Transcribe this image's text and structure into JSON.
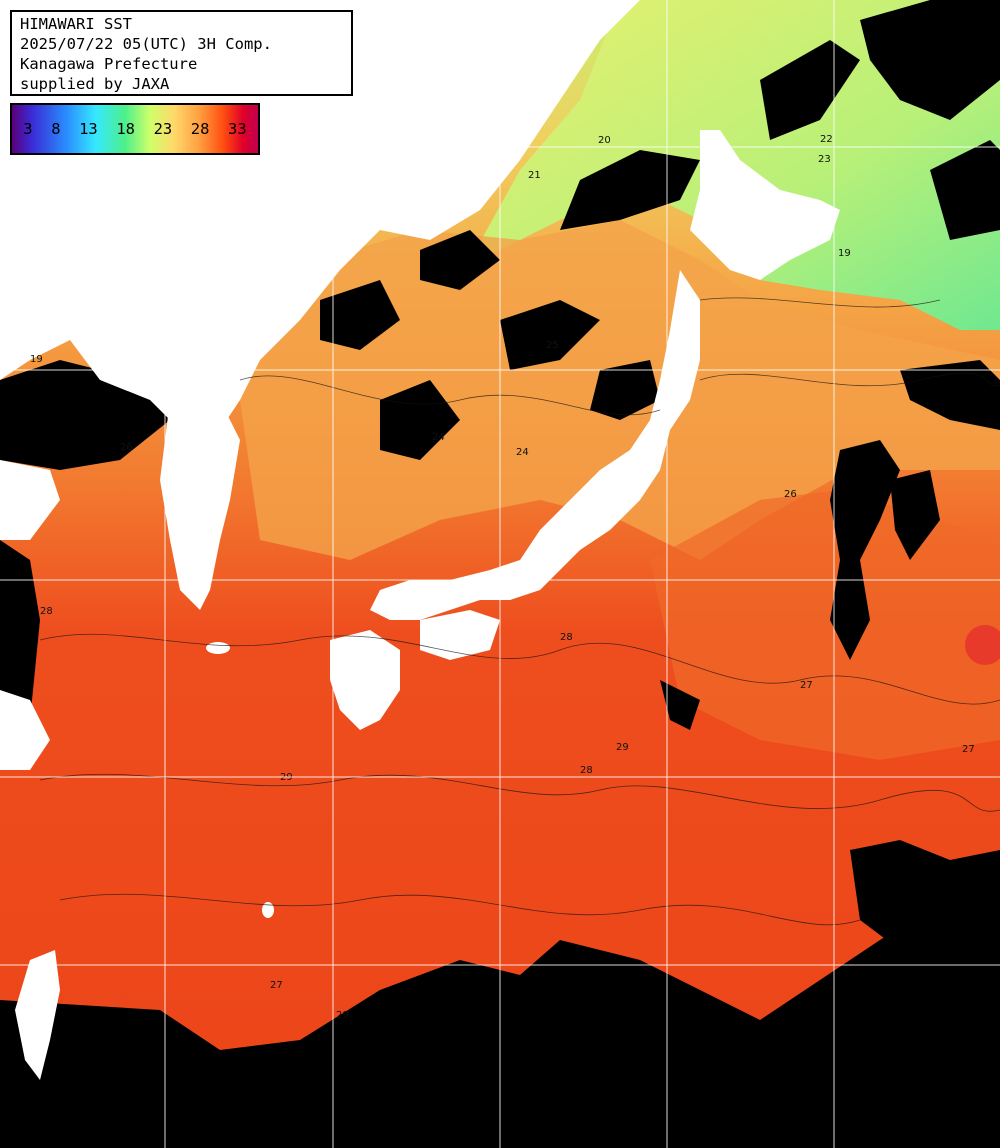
{
  "header": {
    "line1": "HIMAWARI SST",
    "line2": "2025/07/22 05(UTC) 3H Comp.",
    "line3": "Kanagawa Prefecture",
    "line4": "supplied by JAXA"
  },
  "colorbar": {
    "ticks": [
      "3",
      "8",
      "13",
      "18",
      "23",
      "28",
      "33"
    ]
  },
  "contour_labels": [
    "20",
    "21",
    "22",
    "23",
    "19",
    "25",
    "24",
    "26",
    "27",
    "28",
    "29",
    "27",
    "28",
    "29",
    "28",
    "29",
    "27",
    "26",
    "24",
    "19"
  ],
  "colors": {
    "ocean_warm": "#f0401a",
    "ocean_mid": "#f5762a",
    "ocean_cool": "#f5a848",
    "north_yellow": "#e8e870",
    "north_green": "#a8f070",
    "land": "#ffffff",
    "cloud": "#000000",
    "grid": "#ffffff"
  }
}
